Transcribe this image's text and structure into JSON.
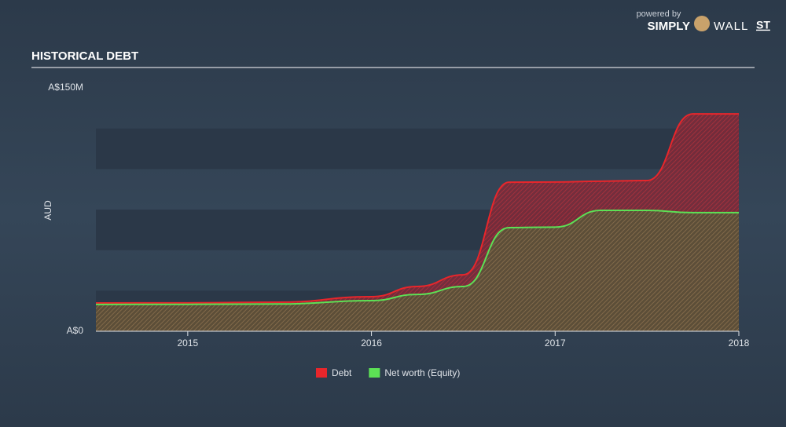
{
  "brand": {
    "powered": "powered by",
    "simply": "SIMPLY",
    "wall": "WALL",
    "st": "ST"
  },
  "chart_data": {
    "type": "area",
    "title": "HISTORICAL DEBT",
    "y_label": "AUD",
    "x": [
      2014.5,
      2015,
      2015.5,
      2016,
      2016.25,
      2016.5,
      2016.75,
      2017,
      2017.25,
      2017.5,
      2017.75,
      2018
    ],
    "xlim": [
      2014.5,
      2018
    ],
    "xticks": [
      2015,
      2016,
      2017,
      2018
    ],
    "ylim": [
      0,
      150000000
    ],
    "yticks": [
      {
        "value": 0,
        "label": "A$0"
      },
      {
        "value": 150000000,
        "label": "A$150M"
      }
    ],
    "series": [
      {
        "name": "Debt",
        "color": "#e8262b",
        "values": [
          17400000,
          17500000,
          17900000,
          21300000,
          27600000,
          34800000,
          91900000,
          92000000,
          92500000,
          92900000,
          134000000,
          134000000
        ]
      },
      {
        "name": "Net worth (Equity)",
        "color": "#5ce155",
        "values": [
          16500000,
          16600000,
          16800000,
          18900000,
          22700000,
          27600000,
          63900000,
          64200000,
          74500000,
          74500000,
          73100000,
          73100000
        ]
      }
    ]
  }
}
